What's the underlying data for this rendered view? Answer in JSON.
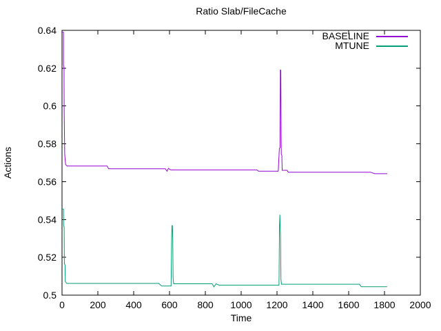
{
  "chart_data": {
    "type": "line",
    "title": "Ratio Slab/FileCache",
    "xlabel": "Time",
    "ylabel": "Actions",
    "xlim": [
      0,
      2000
    ],
    "ylim": [
      0.5,
      0.64
    ],
    "grid": false,
    "legend_position": "top-right-inside",
    "axis_color": "#000000",
    "text_color": "#000000",
    "background_color": "#ffffff",
    "xticks": {
      "values": [
        0,
        200,
        400,
        600,
        800,
        1000,
        1200,
        1400,
        1600,
        1800,
        2000
      ],
      "labels": [
        "0",
        "200",
        "400",
        "600",
        "800",
        "1000",
        "1200",
        "1400",
        "1600",
        "1800",
        "2000"
      ]
    },
    "yticks": {
      "values": [
        0.5,
        0.52,
        0.54,
        0.56,
        0.58,
        0.6,
        0.62,
        0.64
      ],
      "labels": [
        "0.5",
        "0.52",
        "0.54",
        "0.56",
        "0.58",
        "0.6",
        "0.62",
        "0.64"
      ]
    },
    "series": [
      {
        "name": "BASELINE",
        "color": "#9400d3",
        "points": [
          [
            0,
            0.639
          ],
          [
            8,
            0.639
          ],
          [
            8,
            0.6215
          ],
          [
            11,
            0.6205
          ],
          [
            12,
            0.598
          ],
          [
            15,
            0.5745
          ],
          [
            20,
            0.569
          ],
          [
            28,
            0.5683
          ],
          [
            252,
            0.5683
          ],
          [
            260,
            0.5668
          ],
          [
            577,
            0.5668
          ],
          [
            586,
            0.5655
          ],
          [
            594,
            0.567
          ],
          [
            607,
            0.5662
          ],
          [
            1087,
            0.5662
          ],
          [
            1097,
            0.5655
          ],
          [
            1207,
            0.5655
          ],
          [
            1213,
            0.5775
          ],
          [
            1217,
            0.578
          ],
          [
            1219,
            0.619
          ],
          [
            1221,
            0.619
          ],
          [
            1224,
            0.5745
          ],
          [
            1227,
            0.574
          ],
          [
            1229,
            0.566
          ],
          [
            1256,
            0.566
          ],
          [
            1263,
            0.565
          ],
          [
            1722,
            0.565
          ],
          [
            1745,
            0.5642
          ],
          [
            1815,
            0.5642
          ]
        ]
      },
      {
        "name": "MTUNE",
        "color": "#009e73",
        "points": [
          [
            0,
            0.5455
          ],
          [
            8,
            0.5455
          ],
          [
            9,
            0.5368
          ],
          [
            12,
            0.536
          ],
          [
            13,
            0.5165
          ],
          [
            17,
            0.516
          ],
          [
            18,
            0.5073
          ],
          [
            26,
            0.5062
          ],
          [
            540,
            0.5062
          ],
          [
            556,
            0.5048
          ],
          [
            609,
            0.5048
          ],
          [
            612,
            0.531
          ],
          [
            614,
            0.5368
          ],
          [
            616,
            0.5368
          ],
          [
            618,
            0.5295
          ],
          [
            620,
            0.509
          ],
          [
            623,
            0.506
          ],
          [
            838,
            0.506
          ],
          [
            848,
            0.5044
          ],
          [
            860,
            0.506
          ],
          [
            876,
            0.5053
          ],
          [
            1211,
            0.5053
          ],
          [
            1214,
            0.536
          ],
          [
            1216,
            0.5425
          ],
          [
            1218,
            0.536
          ],
          [
            1220,
            0.5305
          ],
          [
            1222,
            0.5085
          ],
          [
            1225,
            0.5058
          ],
          [
            1660,
            0.5058
          ],
          [
            1670,
            0.5045
          ],
          [
            1815,
            0.5045
          ]
        ]
      }
    ]
  }
}
